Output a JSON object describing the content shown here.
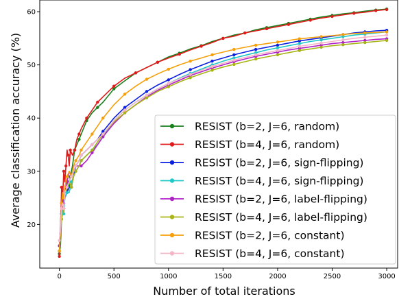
{
  "chart_data": {
    "type": "line",
    "xlabel": "Number of total iterations",
    "ylabel": "Average classification accuracy (%)",
    "xlim": [
      -180,
      3100
    ],
    "ylim": [
      11.8,
      62.2
    ],
    "xticks": [
      0,
      500,
      1000,
      1500,
      2000,
      2500,
      3000
    ],
    "yticks": [
      20,
      30,
      40,
      50,
      60
    ],
    "grid": false,
    "legend_position": "lower-right",
    "series": [
      {
        "name": "RESIST (b=2, J=6, random)",
        "color": "#1a7f1a",
        "x": [
          0,
          10,
          20,
          30,
          40,
          50,
          60,
          70,
          80,
          90,
          100,
          120,
          140,
          160,
          180,
          200,
          250,
          300,
          350,
          400,
          500,
          600,
          700,
          800,
          900,
          1000,
          1100,
          1200,
          1300,
          1400,
          1500,
          1600,
          1700,
          1800,
          1900,
          2000,
          2100,
          2200,
          2300,
          2400,
          2500,
          2600,
          2700,
          2800,
          2900,
          3000
        ],
        "y": [
          14.5,
          16,
          21,
          25,
          23,
          26,
          27,
          26,
          28,
          27,
          29,
          31,
          34,
          35,
          36,
          37,
          39.5,
          41,
          42,
          43,
          45.5,
          47,
          48.5,
          49.5,
          50.5,
          51.5,
          52.2,
          53,
          53.6,
          54.4,
          55,
          55.6,
          56,
          56.6,
          57,
          57.4,
          57.8,
          58.2,
          58.6,
          59,
          59.3,
          59.6,
          59.8,
          60.1,
          60.3,
          60.5
        ]
      },
      {
        "name": "RESIST (b=4, J=6, random)",
        "color": "#e01b1b",
        "x": [
          0,
          10,
          20,
          30,
          40,
          50,
          60,
          70,
          80,
          90,
          100,
          120,
          140,
          160,
          180,
          200,
          250,
          300,
          350,
          400,
          500,
          600,
          700,
          800,
          900,
          1000,
          1100,
          1200,
          1300,
          1400,
          1500,
          1600,
          1700,
          1800,
          1900,
          2000,
          2100,
          2200,
          2300,
          2400,
          2500,
          2600,
          2700,
          2800,
          2900,
          3000
        ],
        "y": [
          14,
          19,
          27,
          25,
          30,
          28,
          31,
          34,
          33,
          31,
          34,
          33,
          34,
          36,
          37,
          38,
          40,
          41.5,
          43,
          44,
          46,
          47.5,
          48.5,
          49.5,
          50.5,
          51.3,
          52,
          52.8,
          53.5,
          54.2,
          55,
          55.4,
          56,
          56.4,
          56.8,
          57.2,
          57.6,
          58,
          58.4,
          58.8,
          59.1,
          59.4,
          59.7,
          59.9,
          60.2,
          60.4
        ]
      },
      {
        "name": "RESIST (b=2, J=6, sign-flipping)",
        "color": "#0a1ee0",
        "x": [
          0,
          10,
          20,
          30,
          40,
          50,
          70,
          90,
          110,
          130,
          150,
          180,
          200,
          250,
          300,
          350,
          400,
          500,
          600,
          700,
          800,
          900,
          1000,
          1100,
          1200,
          1300,
          1400,
          1500,
          1600,
          1700,
          1800,
          1900,
          2000,
          2100,
          2200,
          2300,
          2400,
          2500,
          2600,
          2700,
          2800,
          2900,
          3000
        ],
        "y": [
          15,
          18,
          22,
          24,
          23,
          25,
          26,
          27,
          27,
          29,
          31,
          32,
          33,
          34,
          35,
          36,
          37.5,
          40,
          42,
          43.5,
          45,
          46.2,
          47.2,
          48.2,
          49.1,
          49.9,
          50.7,
          51.3,
          51.9,
          52.4,
          52.9,
          53.3,
          53.7,
          54.1,
          54.5,
          54.8,
          55.1,
          55.4,
          55.7,
          56,
          56.2,
          56.4,
          56.5
        ]
      },
      {
        "name": "RESIST (b=4, J=6, sign-flipping)",
        "color": "#1ec8c8",
        "x": [
          0,
          10,
          20,
          30,
          40,
          50,
          70,
          90,
          110,
          130,
          150,
          180,
          200,
          250,
          300,
          350,
          400,
          500,
          600,
          700,
          800,
          900,
          1000,
          1100,
          1200,
          1300,
          1400,
          1500,
          1600,
          1700,
          1800,
          1900,
          2000,
          2100,
          2200,
          2300,
          2400,
          2500,
          2600,
          2700,
          2800,
          2900,
          3000
        ],
        "y": [
          16,
          19,
          22,
          23,
          22,
          25,
          26,
          26,
          28,
          29,
          30,
          31,
          32,
          33,
          34,
          35,
          36.5,
          39.5,
          41.5,
          43,
          44.3,
          45.5,
          46.5,
          47.5,
          48.4,
          49.2,
          50,
          50.7,
          51.3,
          51.8,
          52.3,
          52.8,
          53.2,
          53.6,
          54,
          54.4,
          54.7,
          55,
          55.3,
          55.6,
          55.8,
          56,
          56.2
        ]
      },
      {
        "name": "RESIST (b=2, J=6, label-flipping)",
        "color": "#b020c8",
        "x": [
          0,
          10,
          20,
          30,
          40,
          50,
          70,
          90,
          110,
          130,
          150,
          180,
          200,
          250,
          300,
          350,
          400,
          500,
          600,
          700,
          800,
          900,
          1000,
          1100,
          1200,
          1300,
          1400,
          1500,
          1600,
          1700,
          1800,
          1900,
          2000,
          2100,
          2200,
          2300,
          2400,
          2500,
          2600,
          2700,
          2800,
          2900,
          3000
        ],
        "y": [
          16,
          20,
          24,
          25,
          24,
          26,
          28,
          30,
          29,
          30,
          31,
          31,
          31,
          32,
          33.5,
          35,
          36.5,
          39,
          41,
          42.5,
          44,
          45.2,
          46.2,
          47.1,
          48,
          48.7,
          49.4,
          50,
          50.6,
          51.1,
          51.6,
          52,
          52.4,
          52.8,
          53.1,
          53.4,
          53.7,
          54,
          54.2,
          54.4,
          54.6,
          54.8,
          54.9
        ]
      },
      {
        "name": "RESIST (b=4, J=6, label-flipping)",
        "color": "#a8b414",
        "x": [
          0,
          10,
          20,
          30,
          40,
          50,
          70,
          90,
          110,
          130,
          150,
          180,
          200,
          250,
          300,
          350,
          400,
          500,
          600,
          700,
          800,
          900,
          1000,
          1100,
          1200,
          1300,
          1400,
          1500,
          1600,
          1700,
          1800,
          1900,
          2000,
          2100,
          2200,
          2300,
          2400,
          2500,
          2600,
          2700,
          2800,
          2900,
          3000
        ],
        "y": [
          15,
          18,
          21,
          22,
          23,
          26,
          27,
          28,
          27,
          29,
          30,
          31,
          32,
          33,
          34,
          35.5,
          37,
          39.3,
          41,
          42.5,
          43.8,
          45,
          45.9,
          46.8,
          47.6,
          48.3,
          49,
          49.6,
          50.1,
          50.6,
          51.1,
          51.5,
          51.9,
          52.3,
          52.7,
          53,
          53.3,
          53.6,
          53.8,
          54,
          54.2,
          54.4,
          54.6
        ]
      },
      {
        "name": "RESIST (b=2, J=6, constant)",
        "color": "#f5a00a",
        "x": [
          0,
          10,
          20,
          30,
          40,
          50,
          70,
          90,
          110,
          130,
          150,
          180,
          200,
          250,
          300,
          350,
          400,
          500,
          600,
          700,
          800,
          900,
          1000,
          1100,
          1200,
          1300,
          1400,
          1500,
          1600,
          1700,
          1800,
          1900,
          2000,
          2100,
          2200,
          2300,
          2400,
          2500,
          2600,
          2700,
          2800,
          2900,
          3000
        ],
        "y": [
          15,
          19,
          24,
          26,
          25,
          27,
          29,
          30,
          29,
          31,
          32,
          33,
          34,
          35.5,
          37,
          38.5,
          40,
          42.5,
          44.5,
          46,
          47.3,
          48.3,
          49.2,
          50,
          50.7,
          51.3,
          51.9,
          52.4,
          52.9,
          53.3,
          53.7,
          54,
          54.3,
          54.6,
          54.9,
          55.1,
          55.3,
          55.5,
          55.7,
          55.9,
          56,
          56.1,
          56.2
        ]
      },
      {
        "name": "RESIST (b=4, J=6, constant)",
        "color": "#f5b6c6",
        "x": [
          0,
          10,
          20,
          30,
          40,
          50,
          70,
          90,
          110,
          130,
          150,
          180,
          200,
          250,
          300,
          350,
          400,
          500,
          600,
          700,
          800,
          900,
          1000,
          1100,
          1200,
          1300,
          1400,
          1500,
          1600,
          1700,
          1800,
          1900,
          2000,
          2100,
          2200,
          2300,
          2400,
          2500,
          2600,
          2700,
          2800,
          2900,
          3000
        ],
        "y": [
          17,
          19,
          23,
          24,
          23,
          26,
          27,
          28,
          29,
          30,
          31,
          32,
          33,
          34,
          35,
          36,
          37,
          39.5,
          41.5,
          43,
          44.3,
          45.5,
          46.5,
          47.4,
          48.2,
          49,
          49.7,
          50.3,
          50.9,
          51.4,
          51.9,
          52.3,
          52.7,
          53.1,
          53.5,
          53.8,
          54.1,
          54.4,
          54.7,
          55,
          55.2,
          55.4,
          55.6
        ]
      }
    ]
  }
}
